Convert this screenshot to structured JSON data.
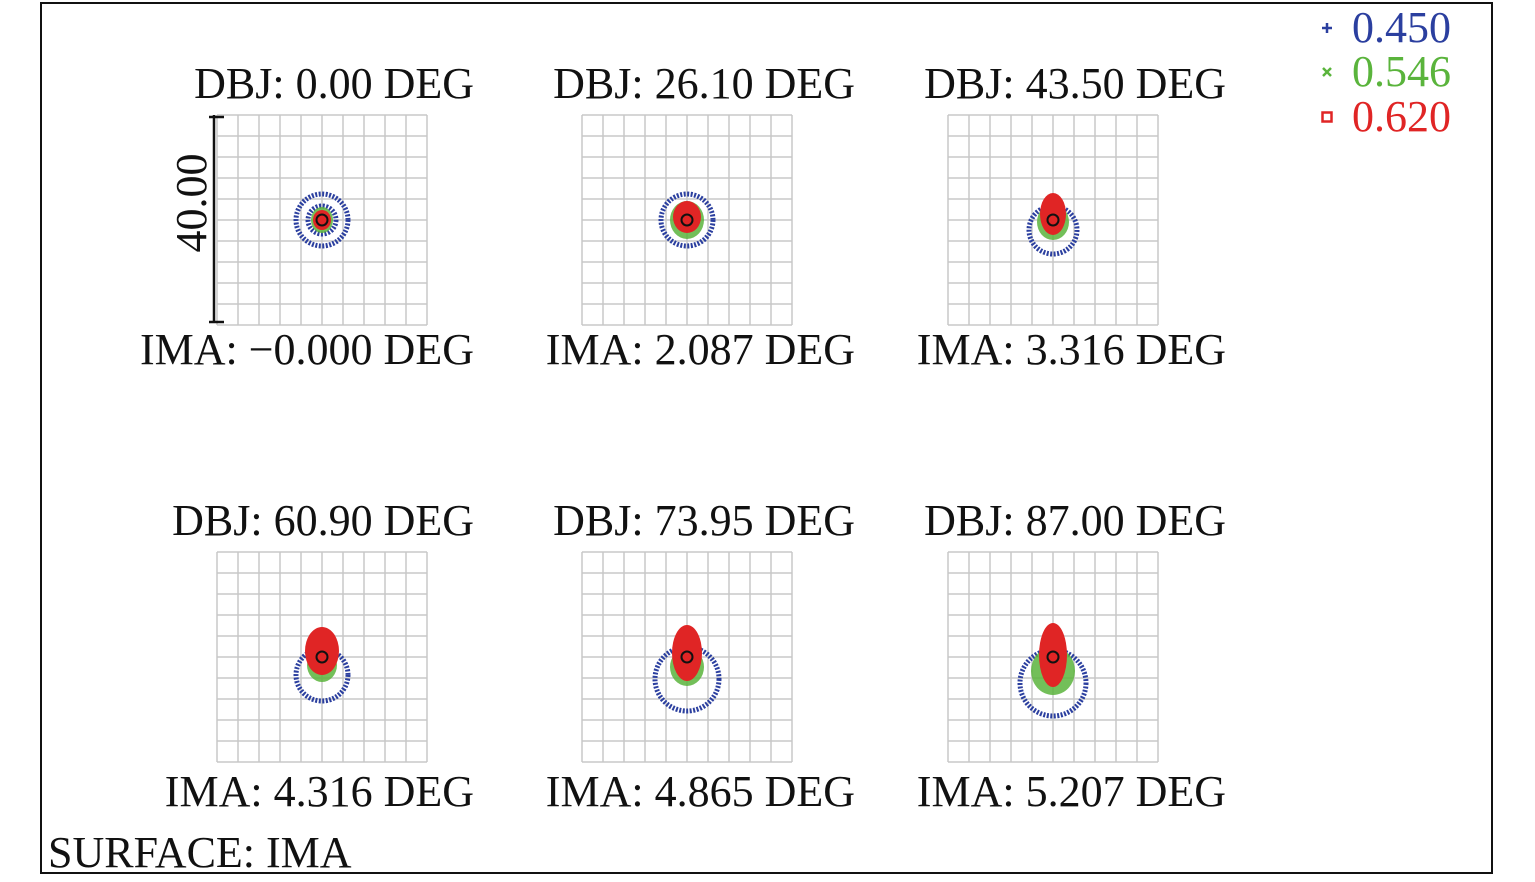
{
  "chart_data": {
    "type": "scatter",
    "subtype": "spot-diagram",
    "surface_label": "SURFACE: IMA",
    "scale_bar_label": "40.00",
    "grid": true,
    "legend_position": "top-right",
    "series": [
      {
        "name": "0.450",
        "color": "#2b3f9f",
        "marker": "+"
      },
      {
        "name": "0.546",
        "color": "#5ab43c",
        "marker": "x"
      },
      {
        "name": "0.620",
        "color": "#e02525",
        "marker": "square"
      }
    ],
    "panels": [
      {
        "obj": "DBJ: 0.00 DEG",
        "ima": "IMA: −0.000 DEG",
        "spots": {
          "blue": {
            "r": 14,
            "outer_r": 26,
            "dy": 0
          },
          "green": {
            "r": 11,
            "dy": 0
          },
          "red": {
            "rx": 9,
            "ry": 10,
            "dy": 0
          }
        }
      },
      {
        "obj": "DBJ: 26.10 DEG",
        "ima": "IMA: 2.087 DEG",
        "spots": {
          "blue": {
            "r": 26,
            "dy": 0
          },
          "green": {
            "r": 17,
            "dy": 0
          },
          "red": {
            "rx": 14,
            "ry": 16,
            "dy": -3
          }
        }
      },
      {
        "obj": "DBJ: 43.50 DEG",
        "ima": "IMA: 3.316 DEG",
        "spots": {
          "blue": {
            "r": 24,
            "dy": 10
          },
          "green": {
            "r": 16,
            "dy": 2
          },
          "red": {
            "rx": 13,
            "ry": 21,
            "dy": -6
          }
        }
      },
      {
        "obj": "DBJ: 60.90 DEG",
        "ima": "IMA: 4.316 DEG",
        "spots": {
          "blue": {
            "r": 26,
            "dy": 18
          },
          "green": {
            "r": 15,
            "dy": 8
          },
          "red": {
            "rx": 17,
            "ry": 24,
            "dy": -6
          }
        }
      },
      {
        "obj": "DBJ: 73.95 DEG",
        "ima": "IMA: 4.865 DEG",
        "spots": {
          "blue": {
            "r": 32,
            "dy": 22
          },
          "green": {
            "r": 17,
            "dy": 10
          },
          "red": {
            "rx": 15,
            "ry": 28,
            "dy": -4
          }
        }
      },
      {
        "obj": "DBJ: 87.00 DEG",
        "ima": "IMA: 5.207 DEG",
        "spots": {
          "blue": {
            "r": 33,
            "dy": 26
          },
          "green": {
            "r": 22,
            "dy": 14
          },
          "red": {
            "rx": 14,
            "ry": 32,
            "dy": -2
          }
        }
      }
    ]
  }
}
